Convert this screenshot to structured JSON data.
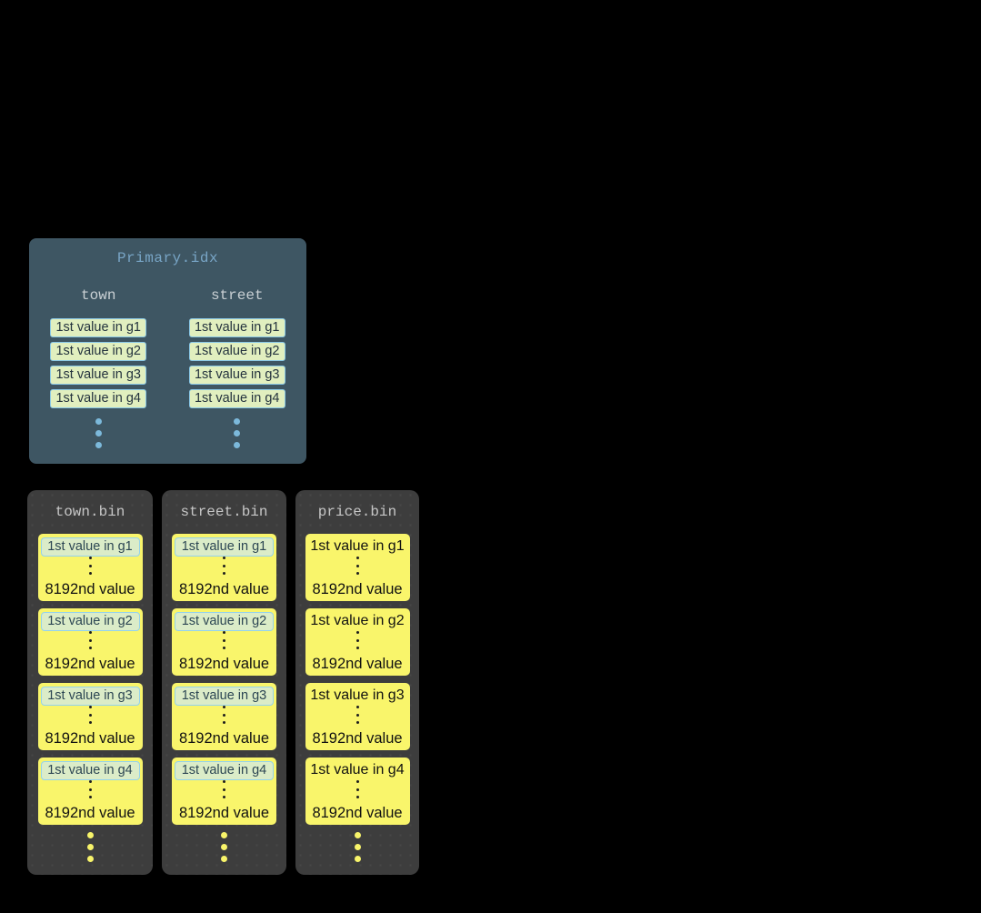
{
  "primary_idx": {
    "title": "Primary.idx",
    "columns": [
      {
        "name": "town",
        "entries": [
          "1st value in g1",
          "1st value in g2",
          "1st value in g3",
          "1st value in g4"
        ]
      },
      {
        "name": "street",
        "entries": [
          "1st value in g1",
          "1st value in g2",
          "1st value in g3",
          "1st value in g4"
        ]
      }
    ]
  },
  "bins": [
    {
      "title": "town.bin",
      "first_values_highlighted": true,
      "granules": [
        {
          "first": "1st value in g1",
          "last": "8192nd value"
        },
        {
          "first": "1st value in g2",
          "last": "8192nd value"
        },
        {
          "first": "1st value in g3",
          "last": "8192nd value"
        },
        {
          "first": "1st value in g4",
          "last": "8192nd value"
        }
      ]
    },
    {
      "title": "street.bin",
      "first_values_highlighted": true,
      "granules": [
        {
          "first": "1st value in g1",
          "last": "8192nd value"
        },
        {
          "first": "1st value in g2",
          "last": "8192nd value"
        },
        {
          "first": "1st value in g3",
          "last": "8192nd value"
        },
        {
          "first": "1st value in g4",
          "last": "8192nd value"
        }
      ]
    },
    {
      "title": "price.bin",
      "first_values_highlighted": false,
      "granules": [
        {
          "first": "1st value in g1",
          "last": "8192nd value"
        },
        {
          "first": "1st value in g2",
          "last": "8192nd value"
        },
        {
          "first": "1st value in g3",
          "last": "8192nd value"
        },
        {
          "first": "1st value in g4",
          "last": "8192nd value"
        }
      ]
    }
  ],
  "colors": {
    "background": "#000000",
    "index_panel_bg": "#3E5663",
    "index_title": "#78A5C6",
    "column_header": "#C9D0D4",
    "entry_bg": "#E1EFBF",
    "entry_border": "#8AC8E6",
    "entry_text": "#24333E",
    "index_dots": "#7CB9DB",
    "bin_panel_bg": "#3D3D3D",
    "bin_title": "#C6C6C6",
    "granule_bg": "#F9F56B",
    "granule_text": "#111111",
    "highlight_bg": "#DBECC8",
    "highlight_border": "#93D2EC",
    "highlight_text": "#2C4653",
    "bin_dots": "#F8F46A"
  }
}
